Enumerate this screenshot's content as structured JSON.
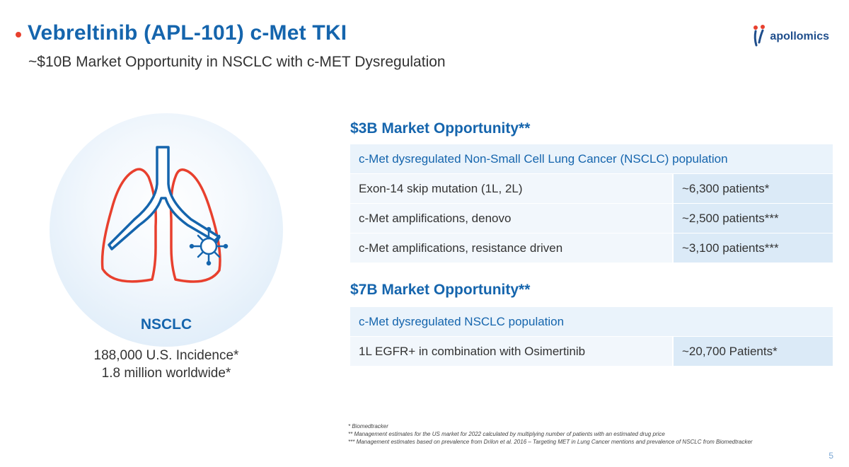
{
  "header": {
    "title": "Vebreltinib (APL-101) c-Met TKI",
    "subtitle": "~$10B Market Opportunity in NSCLC with c-MET Dysregulation",
    "logo_text": "apollomics"
  },
  "left_panel": {
    "label": "NSCLC",
    "incidence_us": "188,000 U.S. Incidence*",
    "incidence_world": "1.8 million worldwide*",
    "colors": {
      "lung_outline": "#e8402e",
      "airway": "#1565ad",
      "circle": "#d7e8f7"
    },
    "icons": [
      "lungs-icon",
      "virus-icon"
    ]
  },
  "section1": {
    "heading": "$3B Market Opportunity**",
    "population": "c-Met dysregulated Non-Small Cell Lung Cancer (NSCLC) population",
    "rows": [
      {
        "label": "Exon-14 skip mutation (1L, 2L)",
        "value": "~6,300 patients*"
      },
      {
        "label": "c-Met amplifications, denovo",
        "value": "~2,500 patients***"
      },
      {
        "label": "c-Met amplifications, resistance driven",
        "value": "~3,100 patients***"
      }
    ]
  },
  "section2": {
    "heading": "$7B Market Opportunity**",
    "population": "c-Met dysregulated NSCLC population",
    "rows": [
      {
        "label": "1L EGFR+ in combination with Osimertinib",
        "value": "~20,700 Patients*"
      }
    ]
  },
  "footnotes": {
    "f1": "* Biomedtracker",
    "f2": "** Management estimates for the US market for 2022 calculated by multiplying number of patients with an estimated drug price",
    "f3": "*** Management estimates based on prevalence from Drilon et al. 2016 – Targeting MET in Lung Cancer mentions and prevalence of NSCLC from Biomedtracker"
  },
  "page_number": "5",
  "colors": {
    "accent": "#1565ad",
    "bullet": "#e8402e",
    "row_bg": "#f2f7fc",
    "value_bg": "#dbeaf7"
  }
}
